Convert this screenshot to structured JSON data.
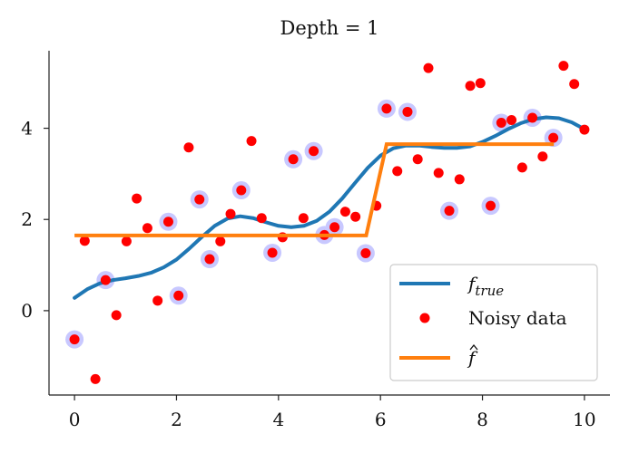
{
  "chart_data": {
    "type": "line",
    "title": "Depth = 1",
    "xlabel": "",
    "ylabel": "",
    "xlim": [
      -0.5,
      10.5
    ],
    "ylim": [
      -1.85,
      5.7
    ],
    "x_ticks": [
      0,
      2,
      4,
      6,
      8,
      10
    ],
    "y_ticks": [
      0,
      2,
      4
    ],
    "grid": false,
    "legend_position": "lower-right",
    "colors": {
      "true_line": "#1f77b4",
      "noisy_points": "#ff0000",
      "highlight": "#c8c8ff",
      "fit_line": "#ff7f0e"
    },
    "series": [
      {
        "name": "f_true",
        "label": "f",
        "label_sub": "true",
        "kind": "line",
        "x": [
          0.0,
          0.25,
          0.5,
          0.75,
          1.0,
          1.25,
          1.5,
          1.75,
          2.0,
          2.25,
          2.5,
          2.75,
          3.0,
          3.25,
          3.5,
          3.75,
          4.0,
          4.25,
          4.5,
          4.75,
          5.0,
          5.25,
          5.5,
          5.75,
          6.0,
          6.25,
          6.5,
          6.75,
          7.0,
          7.25,
          7.5,
          7.75,
          8.0,
          8.25,
          8.5,
          8.75,
          9.0,
          9.25,
          9.5,
          9.75,
          10.0
        ],
        "y": [
          0.28,
          0.47,
          0.6,
          0.67,
          0.71,
          0.76,
          0.83,
          0.95,
          1.12,
          1.36,
          1.62,
          1.86,
          2.02,
          2.07,
          2.03,
          1.94,
          1.86,
          1.83,
          1.86,
          1.97,
          2.17,
          2.46,
          2.8,
          3.13,
          3.4,
          3.56,
          3.62,
          3.62,
          3.59,
          3.57,
          3.57,
          3.6,
          3.7,
          3.83,
          3.98,
          4.11,
          4.2,
          4.24,
          4.22,
          4.13,
          3.98
        ]
      },
      {
        "name": "Noisy data",
        "label": "Noisy data",
        "kind": "scatter",
        "points": [
          {
            "x": 0.0,
            "y": -0.63,
            "h": true
          },
          {
            "x": 0.2,
            "y": 1.53,
            "h": false
          },
          {
            "x": 0.41,
            "y": -1.5,
            "h": false
          },
          {
            "x": 0.61,
            "y": 0.67,
            "h": true
          },
          {
            "x": 0.82,
            "y": -0.1,
            "h": false
          },
          {
            "x": 1.02,
            "y": 1.52,
            "h": false
          },
          {
            "x": 1.22,
            "y": 2.46,
            "h": false
          },
          {
            "x": 1.43,
            "y": 1.81,
            "h": false
          },
          {
            "x": 1.63,
            "y": 0.22,
            "h": false
          },
          {
            "x": 1.84,
            "y": 1.95,
            "h": true
          },
          {
            "x": 2.04,
            "y": 0.33,
            "h": true
          },
          {
            "x": 2.24,
            "y": 3.58,
            "h": false
          },
          {
            "x": 2.45,
            "y": 2.44,
            "h": true
          },
          {
            "x": 2.65,
            "y": 1.13,
            "h": true
          },
          {
            "x": 2.86,
            "y": 1.52,
            "h": false
          },
          {
            "x": 3.06,
            "y": 2.12,
            "h": false
          },
          {
            "x": 3.27,
            "y": 2.64,
            "h": true
          },
          {
            "x": 3.47,
            "y": 3.72,
            "h": false
          },
          {
            "x": 3.67,
            "y": 2.03,
            "h": false
          },
          {
            "x": 3.88,
            "y": 1.27,
            "h": true
          },
          {
            "x": 4.08,
            "y": 1.61,
            "h": false
          },
          {
            "x": 4.29,
            "y": 3.32,
            "h": true
          },
          {
            "x": 4.49,
            "y": 2.03,
            "h": false
          },
          {
            "x": 4.69,
            "y": 3.5,
            "h": true
          },
          {
            "x": 4.9,
            "y": 1.66,
            "h": true
          },
          {
            "x": 5.1,
            "y": 1.83,
            "h": true
          },
          {
            "x": 5.31,
            "y": 2.17,
            "h": false
          },
          {
            "x": 5.51,
            "y": 2.06,
            "h": false
          },
          {
            "x": 5.71,
            "y": 1.26,
            "h": true
          },
          {
            "x": 5.92,
            "y": 2.3,
            "h": false
          },
          {
            "x": 6.12,
            "y": 4.43,
            "h": true
          },
          {
            "x": 6.33,
            "y": 3.06,
            "h": false
          },
          {
            "x": 6.53,
            "y": 4.36,
            "h": true
          },
          {
            "x": 6.73,
            "y": 3.32,
            "h": false
          },
          {
            "x": 6.94,
            "y": 5.32,
            "h": false
          },
          {
            "x": 7.14,
            "y": 3.02,
            "h": false
          },
          {
            "x": 7.35,
            "y": 2.19,
            "h": true
          },
          {
            "x": 7.55,
            "y": 2.88,
            "h": false
          },
          {
            "x": 7.76,
            "y": 4.93,
            "h": false
          },
          {
            "x": 7.96,
            "y": 4.99,
            "h": false
          },
          {
            "x": 8.16,
            "y": 2.3,
            "h": true
          },
          {
            "x": 8.37,
            "y": 4.12,
            "h": true
          },
          {
            "x": 8.57,
            "y": 4.18,
            "h": false
          },
          {
            "x": 8.78,
            "y": 3.14,
            "h": false
          },
          {
            "x": 8.98,
            "y": 4.23,
            "h": true
          },
          {
            "x": 9.18,
            "y": 3.38,
            "h": false
          },
          {
            "x": 9.39,
            "y": 3.79,
            "h": true
          },
          {
            "x": 9.59,
            "y": 5.37,
            "h": false
          },
          {
            "x": 9.8,
            "y": 4.97,
            "h": false
          },
          {
            "x": 10.0,
            "y": 3.97,
            "h": false
          }
        ]
      },
      {
        "name": "f_hat",
        "label": "f",
        "kind": "line",
        "x": [
          0.0,
          5.72,
          6.12,
          9.4
        ],
        "y": [
          1.65,
          1.65,
          3.65,
          3.65
        ]
      }
    ]
  }
}
